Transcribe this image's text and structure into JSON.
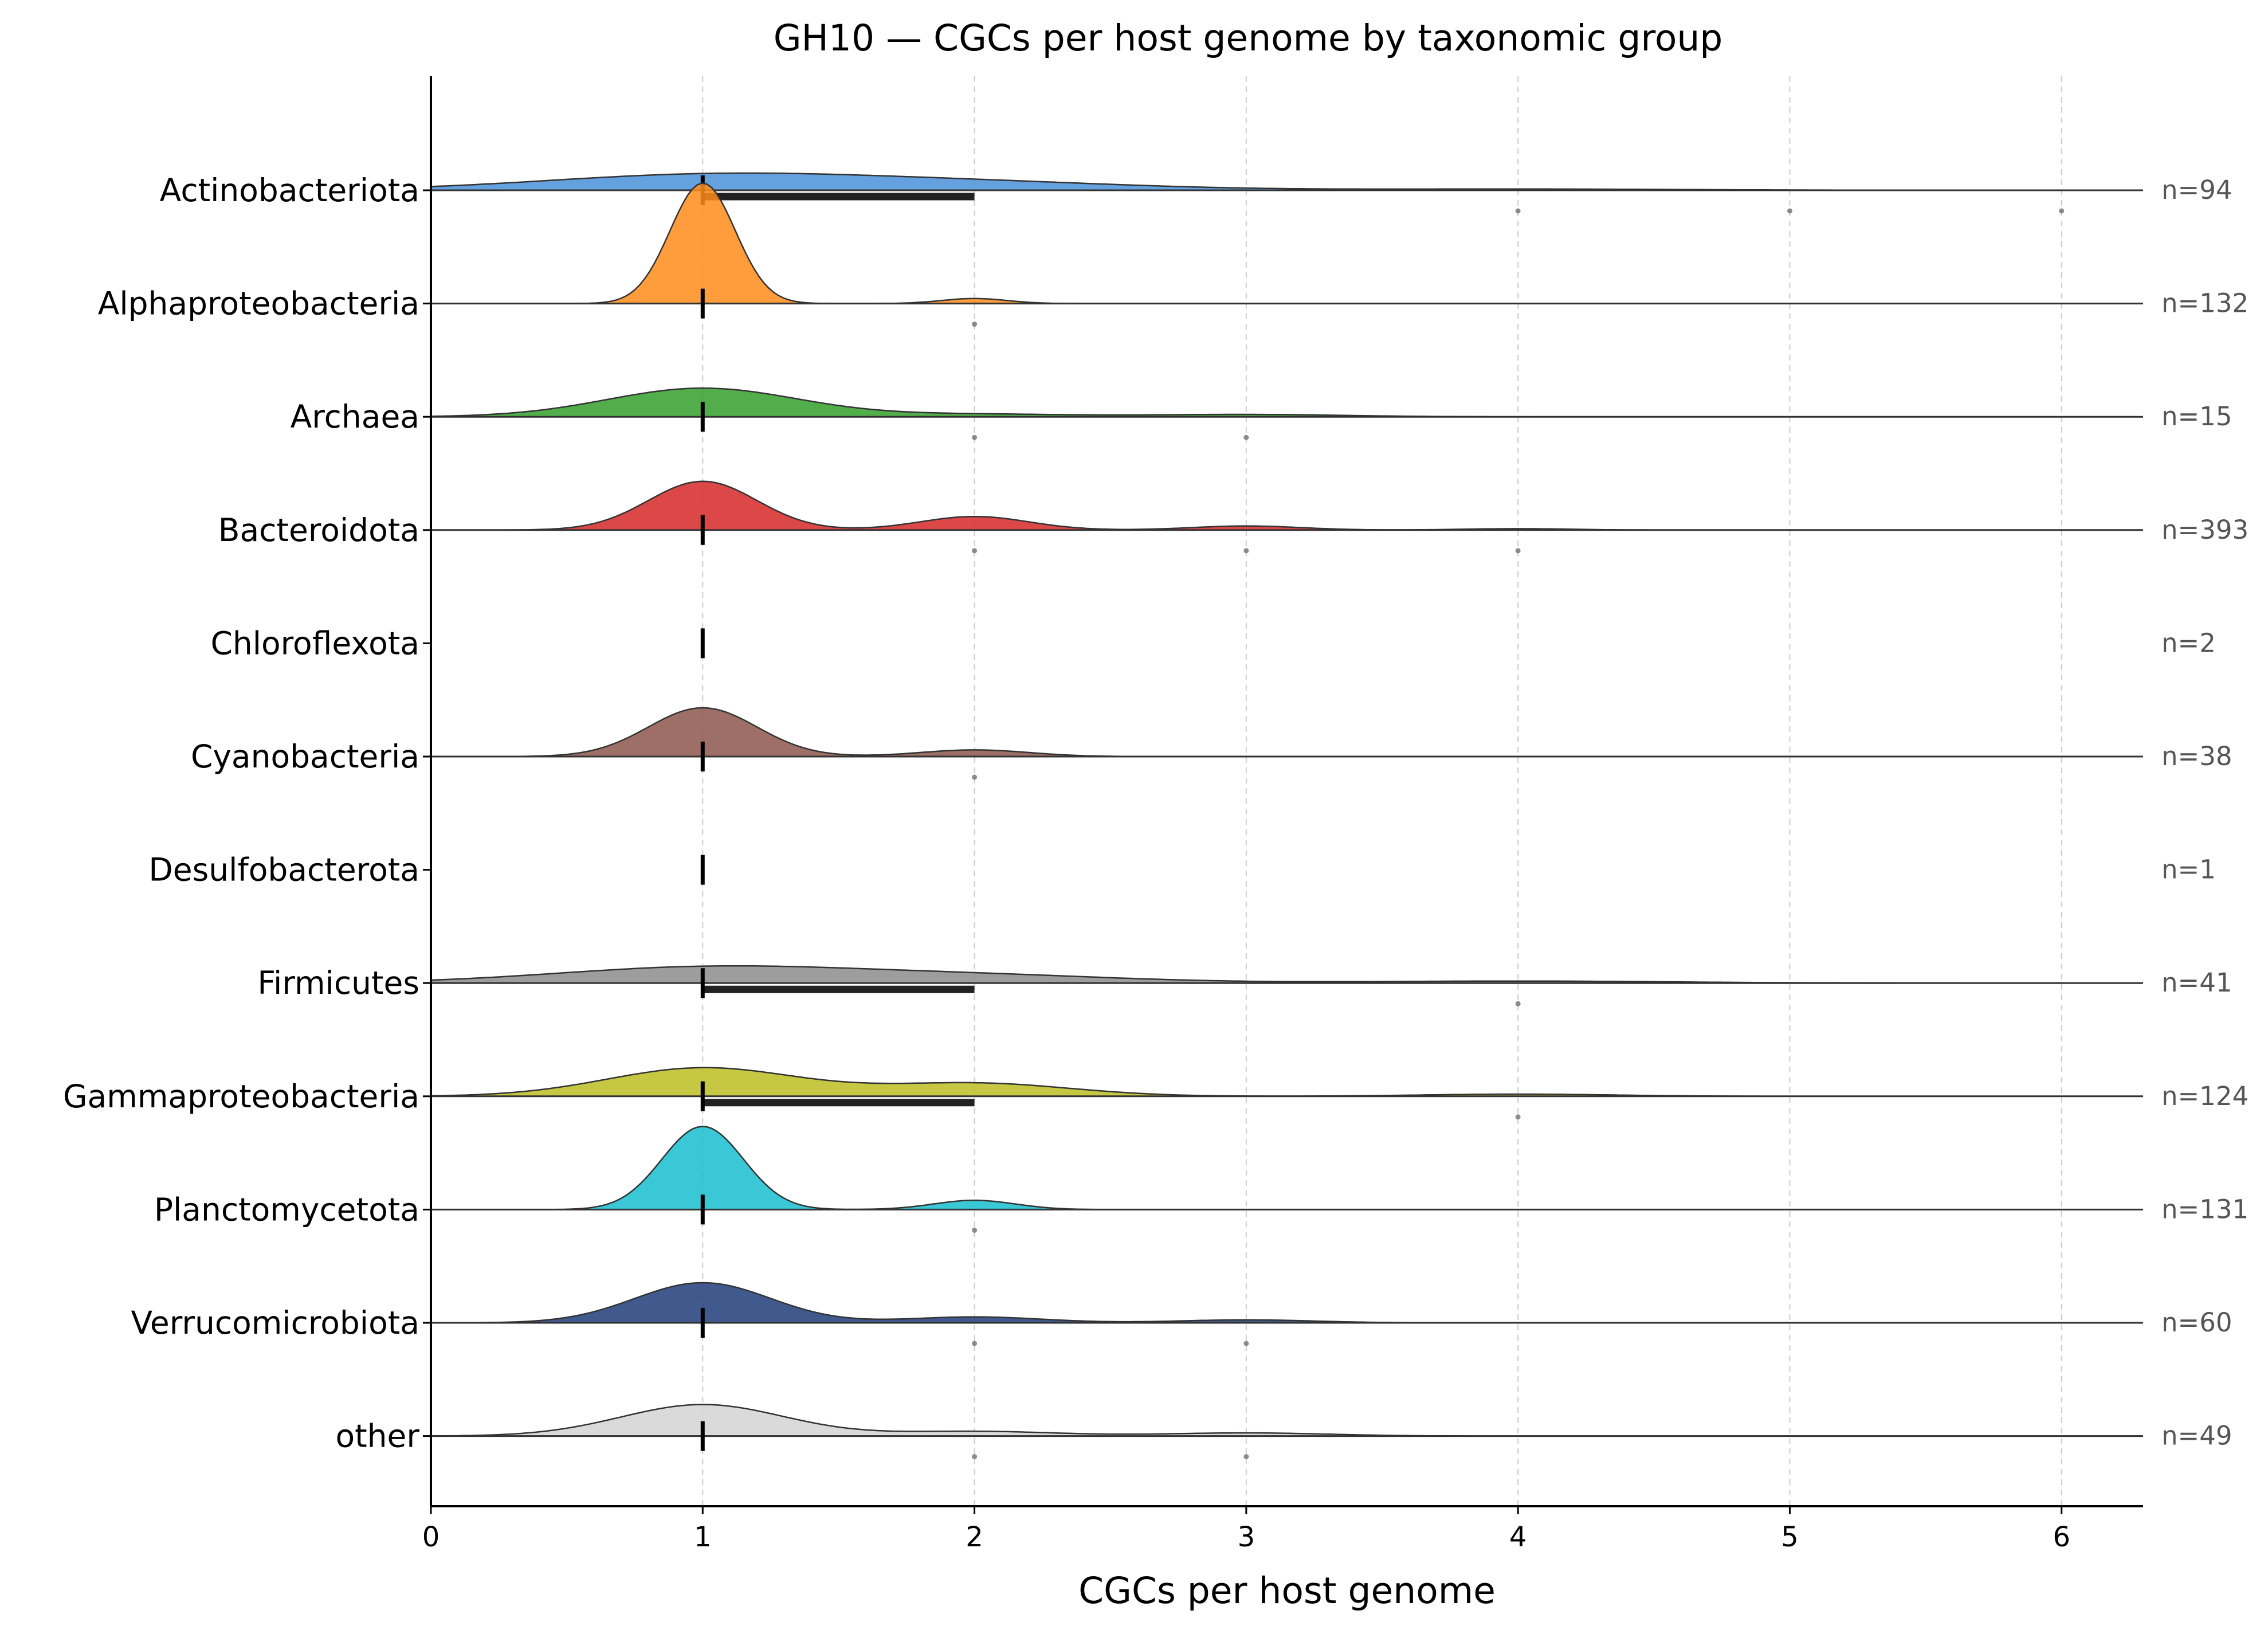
{
  "chart_data": {
    "type": "ridgeline",
    "title": "GH10 — CGCs per host genome by taxonomic group",
    "xlabel": "CGCs per host genome",
    "ylabel": "",
    "xlim": [
      0,
      6.3
    ],
    "xticks": [
      0,
      1,
      2,
      3,
      4,
      5,
      6
    ],
    "xtick_labels": [
      "0",
      "1",
      "2",
      "3",
      "4",
      "5",
      "6"
    ],
    "vertical_grid": true,
    "groups": [
      {
        "name": "Actinobacteriota",
        "n_label": "n=94",
        "color": "#4a90d9",
        "peak": 0.06,
        "bandwidth": 0.6,
        "median": 1,
        "q1": 1,
        "q3": 2,
        "density": [
          {
            "center": 1,
            "weight": 0.6
          },
          {
            "center": 2,
            "weight": 0.3
          },
          {
            "center": 4,
            "weight": 0.05
          }
        ],
        "outliers": [
          4,
          5,
          6
        ]
      },
      {
        "name": "Alphaproteobacteria",
        "n_label": "n=132",
        "color": "#ff8c1a",
        "peak": 0.42,
        "bandwidth": 0.12,
        "median": 1,
        "q1": 1,
        "q3": 1,
        "density": [
          {
            "center": 1,
            "weight": 0.96
          },
          {
            "center": 2,
            "weight": 0.04
          }
        ],
        "outliers": [
          2
        ]
      },
      {
        "name": "Archaea",
        "n_label": "n=15",
        "color": "#33a02c",
        "peak": 0.1,
        "bandwidth": 0.35,
        "median": 1,
        "q1": 1,
        "q3": 1,
        "density": [
          {
            "center": 1,
            "weight": 0.85
          },
          {
            "center": 2,
            "weight": 0.08
          },
          {
            "center": 3,
            "weight": 0.07
          }
        ],
        "outliers": [
          2,
          3
        ]
      },
      {
        "name": "Bacteroidota",
        "n_label": "n=393",
        "color": "#d62728",
        "peak": 0.17,
        "bandwidth": 0.2,
        "median": 1,
        "q1": 1,
        "q3": 1,
        "density": [
          {
            "center": 1,
            "weight": 0.72
          },
          {
            "center": 2,
            "weight": 0.2
          },
          {
            "center": 3,
            "weight": 0.06
          },
          {
            "center": 4,
            "weight": 0.02
          }
        ],
        "outliers": [
          2,
          3,
          4
        ]
      },
      {
        "name": "Chloroflexota",
        "n_label": "n=2",
        "color": "#9467bd",
        "peak": 0,
        "bandwidth": 0.2,
        "median": 1,
        "q1": 1,
        "q3": 1,
        "density": [],
        "outliers": []
      },
      {
        "name": "Cyanobacteria",
        "n_label": "n=38",
        "color": "#8c564b",
        "peak": 0.17,
        "bandwidth": 0.2,
        "median": 1,
        "q1": 1,
        "q3": 1,
        "density": [
          {
            "center": 1,
            "weight": 0.88
          },
          {
            "center": 2,
            "weight": 0.12
          }
        ],
        "outliers": [
          2
        ]
      },
      {
        "name": "Desulfobacterota",
        "n_label": "n=1",
        "color": "#e377c2",
        "peak": 0,
        "bandwidth": 0.2,
        "median": 1,
        "q1": 1,
        "q3": 1,
        "density": [],
        "outliers": []
      },
      {
        "name": "Firmicutes",
        "n_label": "n=41",
        "color": "#8c8c8c",
        "peak": 0.06,
        "bandwidth": 0.55,
        "median": 1,
        "q1": 1,
        "q3": 2,
        "density": [
          {
            "center": 1,
            "weight": 0.62
          },
          {
            "center": 2,
            "weight": 0.3
          },
          {
            "center": 4,
            "weight": 0.08
          }
        ],
        "outliers": [
          4
        ]
      },
      {
        "name": "Gammaproteobacteria",
        "n_label": "n=124",
        "color": "#bcbd22",
        "peak": 0.1,
        "bandwidth": 0.35,
        "median": 1,
        "q1": 1,
        "q3": 2,
        "density": [
          {
            "center": 1,
            "weight": 0.65
          },
          {
            "center": 2,
            "weight": 0.3
          },
          {
            "center": 4,
            "weight": 0.05
          }
        ],
        "outliers": [
          4
        ]
      },
      {
        "name": "Planctomycetota",
        "n_label": "n=131",
        "color": "#17becf",
        "peak": 0.29,
        "bandwidth": 0.15,
        "median": 1,
        "q1": 1,
        "q3": 1,
        "density": [
          {
            "center": 1,
            "weight": 0.9
          },
          {
            "center": 2,
            "weight": 0.1
          }
        ],
        "outliers": [
          2
        ]
      },
      {
        "name": "Verrucomicrobiota",
        "n_label": "n=60",
        "color": "#1f3d7a",
        "peak": 0.14,
        "bandwidth": 0.25,
        "median": 1,
        "q1": 1,
        "q3": 1,
        "density": [
          {
            "center": 1,
            "weight": 0.82
          },
          {
            "center": 2,
            "weight": 0.12
          },
          {
            "center": 3,
            "weight": 0.06
          }
        ],
        "outliers": [
          2,
          3
        ]
      },
      {
        "name": "other",
        "n_label": "n=49",
        "color": "#d3d3d3",
        "peak": 0.11,
        "bandwidth": 0.3,
        "median": 1,
        "q1": 1,
        "q3": 1,
        "density": [
          {
            "center": 1,
            "weight": 0.8
          },
          {
            "center": 2,
            "weight": 0.12
          },
          {
            "center": 3,
            "weight": 0.08
          }
        ],
        "outliers": [
          2,
          3
        ]
      }
    ]
  }
}
